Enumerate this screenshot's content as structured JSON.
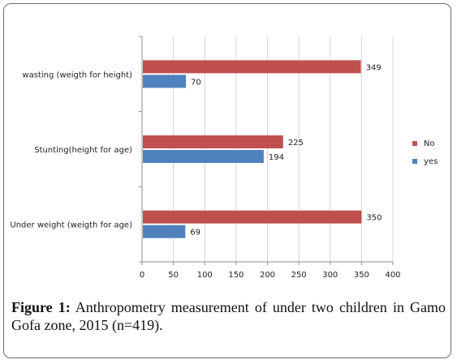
{
  "chart_data": {
    "type": "bar",
    "orientation": "horizontal",
    "categories": [
      "wasting (weigth for height)",
      "Stunting(height for age)",
      "Under weight (weigth for age)"
    ],
    "series": [
      {
        "name": "No",
        "values": [
          349,
          225,
          350
        ],
        "color": "#c0504d"
      },
      {
        "name": "yes",
        "values": [
          70,
          194,
          69
        ],
        "color": "#4f81bd"
      }
    ],
    "xlim": [
      0,
      400
    ],
    "xticks": [
      0,
      50,
      100,
      150,
      200,
      250,
      300,
      350,
      400
    ],
    "grid": true,
    "legend": "right"
  },
  "caption": {
    "label": "Figure 1:",
    "text": " Anthropometry measurement of under two children in Gamo Gofa zone, 2015 (n=419)."
  }
}
